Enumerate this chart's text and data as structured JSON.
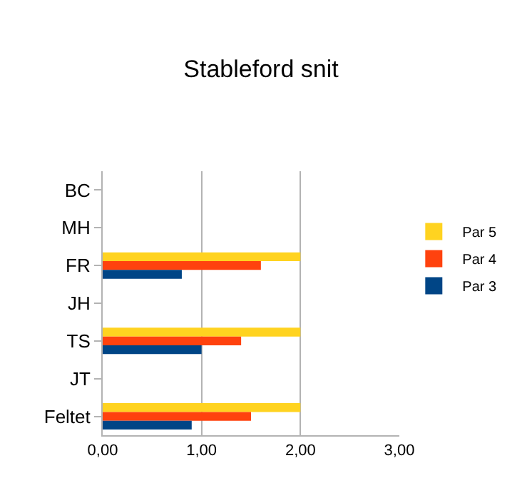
{
  "chart_data": {
    "type": "bar",
    "orientation": "horizontal",
    "title": "Stableford snit",
    "categories": [
      "BC",
      "MH",
      "FR",
      "JH",
      "TS",
      "JT",
      "Feltet"
    ],
    "series": [
      {
        "name": "Par 5",
        "color": "#ffd320",
        "values": [
          null,
          null,
          2.0,
          null,
          2.0,
          null,
          2.0
        ]
      },
      {
        "name": "Par 4",
        "color": "#ff420e",
        "values": [
          null,
          null,
          1.6,
          null,
          1.4,
          null,
          1.5
        ]
      },
      {
        "name": "Par 3",
        "color": "#004586",
        "values": [
          null,
          null,
          0.8,
          null,
          1.0,
          null,
          0.9
        ]
      }
    ],
    "xlim": [
      0,
      3
    ],
    "xticks": [
      {
        "value": 0,
        "label": "0,00"
      },
      {
        "value": 1,
        "label": "1,00"
      },
      {
        "value": 2,
        "label": "2,00"
      },
      {
        "value": 3,
        "label": "3,00"
      }
    ],
    "grid": "x",
    "legend": "right"
  }
}
